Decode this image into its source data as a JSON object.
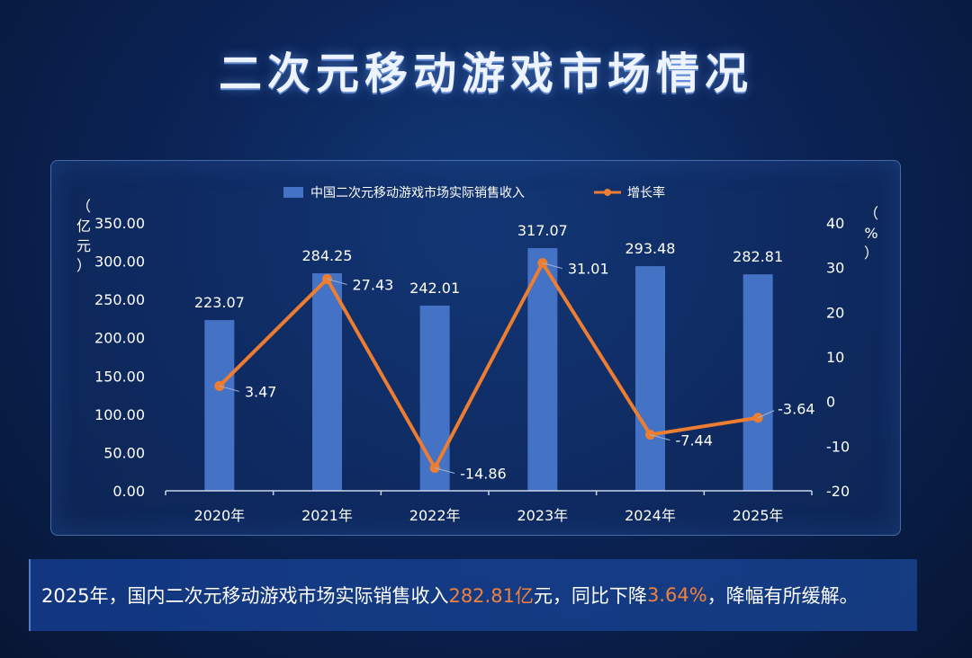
{
  "title": "二次元移动游戏市场情况",
  "chart_data": {
    "type": "bar",
    "categories": [
      "2020年",
      "2021年",
      "2022年",
      "2023年",
      "2024年",
      "2025年"
    ],
    "series": [
      {
        "name": "中国二次元移动游戏市场实际销售收入",
        "type": "bar",
        "axis": "left",
        "values": [
          223.07,
          284.25,
          242.01,
          317.07,
          293.48,
          282.81
        ],
        "labels": [
          "223.07",
          "284.25",
          "242.01",
          "317.07",
          "293.48",
          "282.81"
        ]
      },
      {
        "name": "增长率",
        "type": "line",
        "axis": "right",
        "values": [
          3.47,
          27.43,
          -14.86,
          31.01,
          -7.44,
          -3.64
        ],
        "labels": [
          "3.47",
          "27.43",
          "-14.86",
          "31.01",
          "-7.44",
          "-3.64"
        ]
      }
    ],
    "left_axis": {
      "label_chars": [
        "（",
        "亿",
        "元",
        "）"
      ],
      "ylim": [
        0,
        350
      ],
      "ticks": [
        "0.00",
        "50.00",
        "100.00",
        "150.00",
        "200.00",
        "250.00",
        "300.00",
        "350.00"
      ]
    },
    "right_axis": {
      "label_chars": [
        "（",
        "%",
        "）"
      ],
      "ylim": [
        -20,
        40
      ],
      "ticks": [
        "-20",
        "-10",
        "0",
        "10",
        "20",
        "30",
        "40"
      ]
    },
    "legend_position": "top-center",
    "grid": false,
    "colors": {
      "bar": "#4472c4",
      "line": "#ed7d31"
    }
  },
  "summary": {
    "prefix": "2025年，国内二次元移动游戏市场实际销售收入",
    "revenue": "282.81亿",
    "middle": "元，同比下降",
    "rate": "3.64%",
    "suffix": "，降幅有所缓解。"
  }
}
